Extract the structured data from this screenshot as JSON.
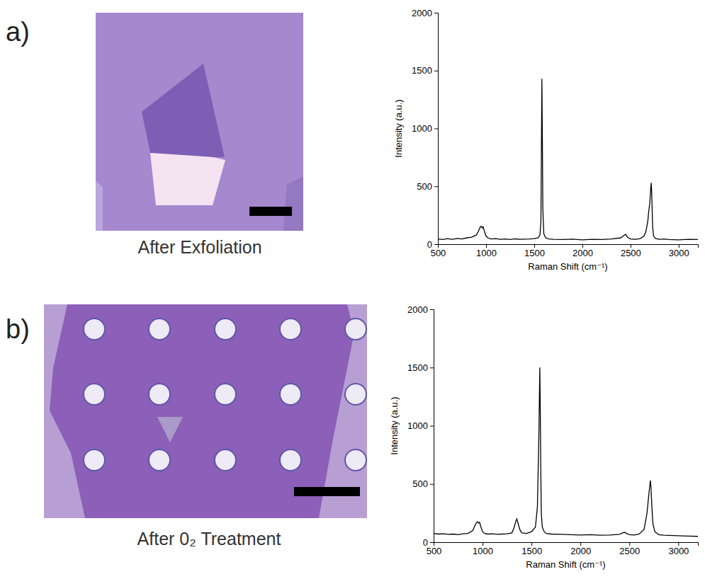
{
  "panels": [
    {
      "letter": "a)",
      "caption": "After Exfoliation"
    },
    {
      "letter": "b)",
      "caption": "After 0₂ Treatment"
    }
  ],
  "chart_data": [
    {
      "type": "line",
      "xlabel": "Raman Shift (cm⁻¹)",
      "ylabel": "Intensity (a.u.)",
      "xlim": [
        500,
        3200
      ],
      "ylim": [
        0,
        2000
      ],
      "xticks": [
        500,
        1000,
        1500,
        2000,
        2500,
        3000
      ],
      "yticks": [
        0,
        500,
        1000,
        1500,
        2000
      ],
      "x": [
        500,
        550,
        600,
        650,
        700,
        750,
        800,
        850,
        900,
        920,
        940,
        950,
        960,
        970,
        980,
        1000,
        1020,
        1050,
        1100,
        1150,
        1200,
        1250,
        1300,
        1350,
        1400,
        1450,
        1500,
        1540,
        1560,
        1570,
        1575,
        1580,
        1585,
        1590,
        1600,
        1620,
        1650,
        1700,
        1800,
        1900,
        2000,
        2100,
        2200,
        2300,
        2400,
        2430,
        2450,
        2470,
        2500,
        2550,
        2600,
        2640,
        2660,
        2680,
        2690,
        2700,
        2710,
        2715,
        2720,
        2725,
        2730,
        2740,
        2760,
        2800,
        2850,
        2900,
        3000,
        3100,
        3200
      ],
      "series": [
        {
          "color": "#000000",
          "values": [
            45,
            40,
            48,
            42,
            50,
            45,
            55,
            60,
            80,
            110,
            150,
            155,
            140,
            150,
            120,
            70,
            55,
            45,
            48,
            42,
            45,
            40,
            46,
            42,
            44,
            45,
            48,
            55,
            80,
            200,
            800,
            1430,
            900,
            300,
            90,
            55,
            45,
            42,
            40,
            44,
            38,
            42,
            40,
            45,
            55,
            75,
            85,
            60,
            45,
            42,
            48,
            70,
            110,
            200,
            290,
            350,
            480,
            530,
            450,
            300,
            150,
            70,
            50,
            42,
            45,
            40,
            38,
            42,
            40
          ]
        }
      ]
    },
    {
      "type": "line",
      "xlabel": "Raman Shift (cm⁻¹)",
      "ylabel": "Intensity (a.u.)",
      "xlim": [
        500,
        3200
      ],
      "ylim": [
        0,
        2000
      ],
      "xticks": [
        500,
        1000,
        1500,
        2000,
        2500,
        3000
      ],
      "yticks": [
        0,
        500,
        1000,
        1500,
        2000
      ],
      "x": [
        500,
        550,
        600,
        650,
        700,
        750,
        800,
        850,
        900,
        920,
        940,
        950,
        960,
        970,
        980,
        1000,
        1020,
        1050,
        1100,
        1150,
        1200,
        1250,
        1300,
        1320,
        1340,
        1350,
        1360,
        1380,
        1400,
        1450,
        1500,
        1540,
        1560,
        1575,
        1585,
        1590,
        1595,
        1600,
        1610,
        1630,
        1650,
        1700,
        1800,
        1900,
        2000,
        2100,
        2200,
        2300,
        2400,
        2430,
        2450,
        2470,
        2500,
        2550,
        2600,
        2650,
        2680,
        2700,
        2710,
        2715,
        2720,
        2730,
        2740,
        2760,
        2800,
        2850,
        2900,
        3000,
        3100,
        3200
      ],
      "series": [
        {
          "color": "#000000",
          "values": [
            75,
            70,
            72,
            68,
            70,
            65,
            72,
            75,
            100,
            140,
            170,
            175,
            165,
            170,
            140,
            90,
            75,
            70,
            72,
            68,
            70,
            72,
            80,
            120,
            180,
            200,
            170,
            110,
            80,
            75,
            90,
            130,
            300,
            900,
            1500,
            1100,
            600,
            250,
            130,
            90,
            75,
            70,
            68,
            65,
            62,
            65,
            60,
            62,
            68,
            80,
            85,
            75,
            65,
            62,
            70,
            110,
            250,
            420,
            500,
            530,
            480,
            300,
            160,
            90,
            65,
            60,
            58,
            55,
            52,
            50
          ]
        }
      ]
    }
  ]
}
